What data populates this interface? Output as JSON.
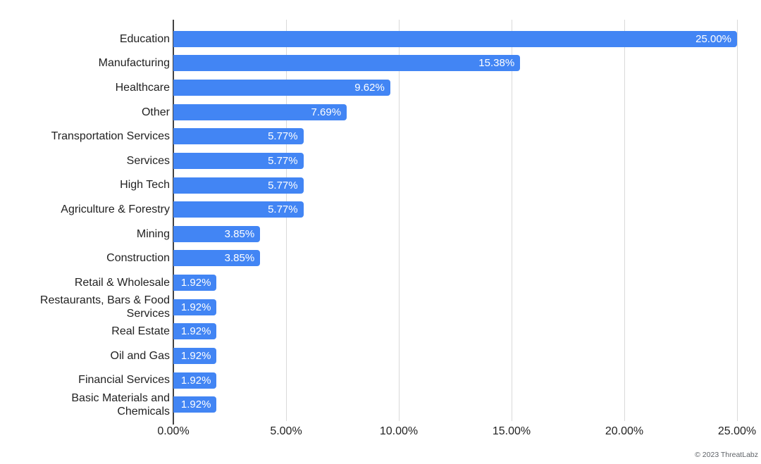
{
  "chart_data": {
    "type": "bar",
    "orientation": "horizontal",
    "title": "",
    "xlabel": "",
    "ylabel": "",
    "legend": "none",
    "grid": "vertical",
    "xlim": [
      0,
      25
    ],
    "categories": [
      "Education",
      "Manufacturing",
      "Healthcare",
      "Other",
      "Transportation Services",
      "Services",
      "High Tech",
      "Agriculture & Forestry",
      "Mining",
      "Construction",
      "Retail & Wholesale",
      "Restaurants, Bars & Food Services",
      "Real Estate",
      "Oil and Gas",
      "Financial Services",
      "Basic Materials and Chemicals"
    ],
    "values": [
      25.0,
      15.38,
      9.62,
      7.69,
      5.77,
      5.77,
      5.77,
      5.77,
      3.85,
      3.85,
      1.92,
      1.92,
      1.92,
      1.92,
      1.92,
      1.92
    ],
    "value_labels": [
      "25.00%",
      "15.38%",
      "9.62%",
      "7.69%",
      "5.77%",
      "5.77%",
      "5.77%",
      "5.77%",
      "3.85%",
      "3.85%",
      "1.92%",
      "1.92%",
      "1.92%",
      "1.92%",
      "1.92%",
      "1.92%"
    ],
    "x_tick_values": [
      0,
      5,
      10,
      15,
      20,
      25
    ],
    "x_tick_labels": [
      "0.00%",
      "5.00%",
      "10.00%",
      "15.00%",
      "20.00%",
      "25.00%"
    ],
    "colors": {
      "bar": "#4285f4",
      "value_label": "#ffffff",
      "category_label": "#222222",
      "tick_label": "#222222",
      "gridline": "#d9d9d9",
      "axis_line": "#424242",
      "background": "#ffffff"
    }
  },
  "footer": {
    "copyright": "© 2023 ThreatLabz"
  }
}
